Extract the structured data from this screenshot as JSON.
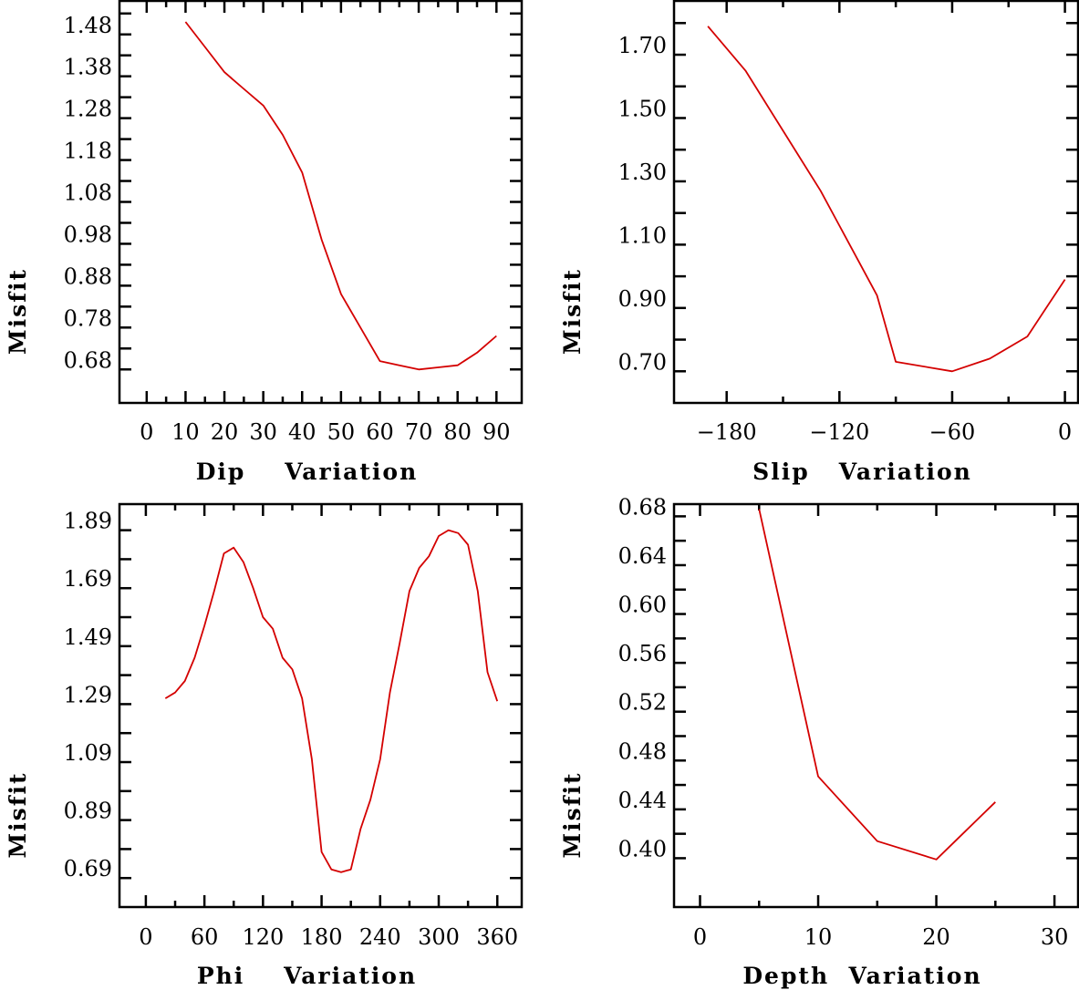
{
  "chart_data": [
    {
      "type": "line",
      "title": "",
      "xlabel": "Dip    Variation",
      "ylabel": "Misfit",
      "xlim": [
        -7,
        96.5
      ],
      "ylim": [
        0.6,
        1.56
      ],
      "xticks": [
        0,
        10,
        20,
        30,
        40,
        50,
        60,
        70,
        80,
        90
      ],
      "xtick_labels": [
        "0",
        "10",
        "20",
        "30",
        "40",
        "50",
        "60",
        "70",
        "80",
        "90"
      ],
      "xminor": [
        5,
        15,
        25,
        35,
        45,
        55,
        65,
        75,
        85
      ],
      "yticks": [
        0.68,
        0.78,
        0.88,
        0.98,
        1.08,
        1.18,
        1.28,
        1.38,
        1.48
      ],
      "ytick_labels": [
        "0.68",
        "0.78",
        "0.88",
        "0.98",
        "1.08",
        "1.18",
        "1.28",
        "1.38",
        "1.48"
      ],
      "yminor": [
        0.73,
        0.83,
        0.93,
        1.03,
        1.13,
        1.23,
        1.33,
        1.43,
        1.53
      ],
      "color": "#d40000",
      "series": [
        {
          "name": "misfit",
          "x": [
            10,
            15,
            20,
            25,
            30,
            35,
            40,
            45,
            50,
            55,
            60,
            65,
            70,
            75,
            80,
            85,
            90
          ],
          "y": [
            1.51,
            1.45,
            1.39,
            1.35,
            1.31,
            1.24,
            1.15,
            0.99,
            0.86,
            0.78,
            0.7,
            0.69,
            0.68,
            0.685,
            0.69,
            0.72,
            0.76
          ]
        }
      ]
    },
    {
      "type": "line",
      "title": "",
      "xlabel": "Slip   Variation",
      "ylabel": "Misfit",
      "xlim": [
        -208,
        7
      ],
      "ylim": [
        0.6,
        1.87
      ],
      "xticks": [
        -180,
        -120,
        -60,
        0
      ],
      "xtick_labels": [
        "−180",
        "−120",
        "−60",
        "0"
      ],
      "xminor": [
        -150,
        -90,
        -30
      ],
      "yticks": [
        0.7,
        0.9,
        1.1,
        1.3,
        1.5,
        1.7
      ],
      "ytick_labels": [
        "0.70",
        "0.90",
        "1.10",
        "1.30",
        "1.50",
        "1.70"
      ],
      "yminor": [
        0.8,
        1.0,
        1.2,
        1.4,
        1.6,
        1.8
      ],
      "color": "#d40000",
      "series": [
        {
          "name": "misfit",
          "x": [
            -190,
            -170,
            -150,
            -130,
            -120,
            -110,
            -100,
            -90,
            -60,
            -40,
            -20,
            0
          ],
          "y": [
            1.79,
            1.65,
            1.46,
            1.27,
            1.16,
            1.05,
            0.94,
            0.73,
            0.7,
            0.74,
            0.81,
            0.99
          ]
        }
      ]
    },
    {
      "type": "line",
      "title": "",
      "xlabel": "Phi    Variation",
      "ylabel": "Misfit",
      "xlim": [
        -27,
        385
      ],
      "ylim": [
        0.59,
        1.98
      ],
      "xticks": [
        0,
        60,
        120,
        180,
        240,
        300,
        360
      ],
      "xtick_labels": [
        "0",
        "60",
        "120",
        "180",
        "240",
        "300",
        "360"
      ],
      "xminor": [
        30,
        90,
        150,
        210,
        270,
        330
      ],
      "yticks": [
        0.69,
        0.89,
        1.09,
        1.29,
        1.49,
        1.69,
        1.89
      ],
      "ytick_labels": [
        "0.69",
        "0.89",
        "1.09",
        "1.29",
        "1.49",
        "1.69",
        "1.89"
      ],
      "yminor": [
        0.79,
        0.99,
        1.19,
        1.39,
        1.59,
        1.79
      ],
      "color": "#d40000",
      "series": [
        {
          "name": "misfit",
          "x": [
            20,
            30,
            40,
            50,
            60,
            70,
            80,
            90,
            100,
            110,
            120,
            130,
            140,
            150,
            160,
            170,
            180,
            190,
            200,
            210,
            220,
            230,
            240,
            250,
            260,
            270,
            280,
            290,
            300,
            310,
            320,
            330,
            340,
            350,
            360
          ],
          "y": [
            1.31,
            1.33,
            1.37,
            1.45,
            1.56,
            1.68,
            1.81,
            1.83,
            1.78,
            1.69,
            1.59,
            1.55,
            1.45,
            1.41,
            1.31,
            1.1,
            0.78,
            0.72,
            0.71,
            0.72,
            0.86,
            0.96,
            1.1,
            1.33,
            1.5,
            1.68,
            1.76,
            1.8,
            1.87,
            1.89,
            1.88,
            1.84,
            1.68,
            1.4,
            1.3
          ]
        }
      ]
    },
    {
      "type": "line",
      "title": "",
      "xlabel": "Depth  Variation",
      "ylabel": "Misfit",
      "xlim": [
        -2.2,
        32
      ],
      "ylim": [
        0.36,
        0.69
      ],
      "xticks": [
        0,
        10,
        20,
        30
      ],
      "xtick_labels": [
        "0",
        "10",
        "20",
        "30"
      ],
      "xminor": [
        5,
        15,
        25
      ],
      "yticks": [
        0.4,
        0.44,
        0.48,
        0.52,
        0.56,
        0.6,
        0.64,
        0.68
      ],
      "ytick_labels": [
        "0.40",
        "0.44",
        "0.48",
        "0.52",
        "0.56",
        "0.60",
        "0.64",
        "0.68"
      ],
      "yminor": [
        0.42,
        0.46,
        0.5,
        0.54,
        0.58,
        0.62,
        0.66
      ],
      "color": "#d40000",
      "series": [
        {
          "name": "misfit",
          "x": [
            5,
            10,
            15,
            20,
            25
          ],
          "y": [
            0.686,
            0.467,
            0.414,
            0.399,
            0.446
          ]
        }
      ]
    }
  ]
}
